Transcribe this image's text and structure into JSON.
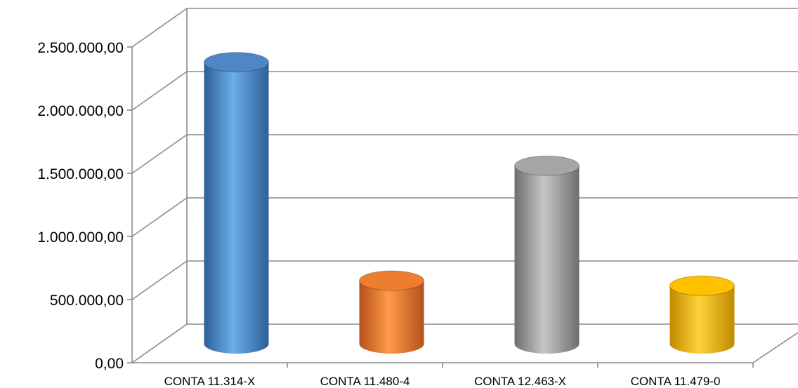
{
  "chart_data": {
    "type": "bar",
    "style": "3d-cylinder",
    "categories": [
      "CONTA 11.314-X",
      "CONTA 11.480-4",
      "CONTA 12.463-X",
      "CONTA 11.479-0"
    ],
    "values": [
      2230000,
      500000,
      1410000,
      460000
    ],
    "colors": [
      "#4F86C6",
      "#ED7D31",
      "#A5A5A5",
      "#FFC000"
    ],
    "ylim": [
      0,
      2500000
    ],
    "yticks": [
      0,
      500000,
      1000000,
      1500000,
      2000000,
      2500000
    ],
    "ytick_labels": [
      "0,00",
      "500.000,00",
      "1.000.000,00",
      "1.500.000,00",
      "2.000.000,00",
      "2.500.000,00"
    ],
    "grid": true,
    "legend": "none"
  }
}
